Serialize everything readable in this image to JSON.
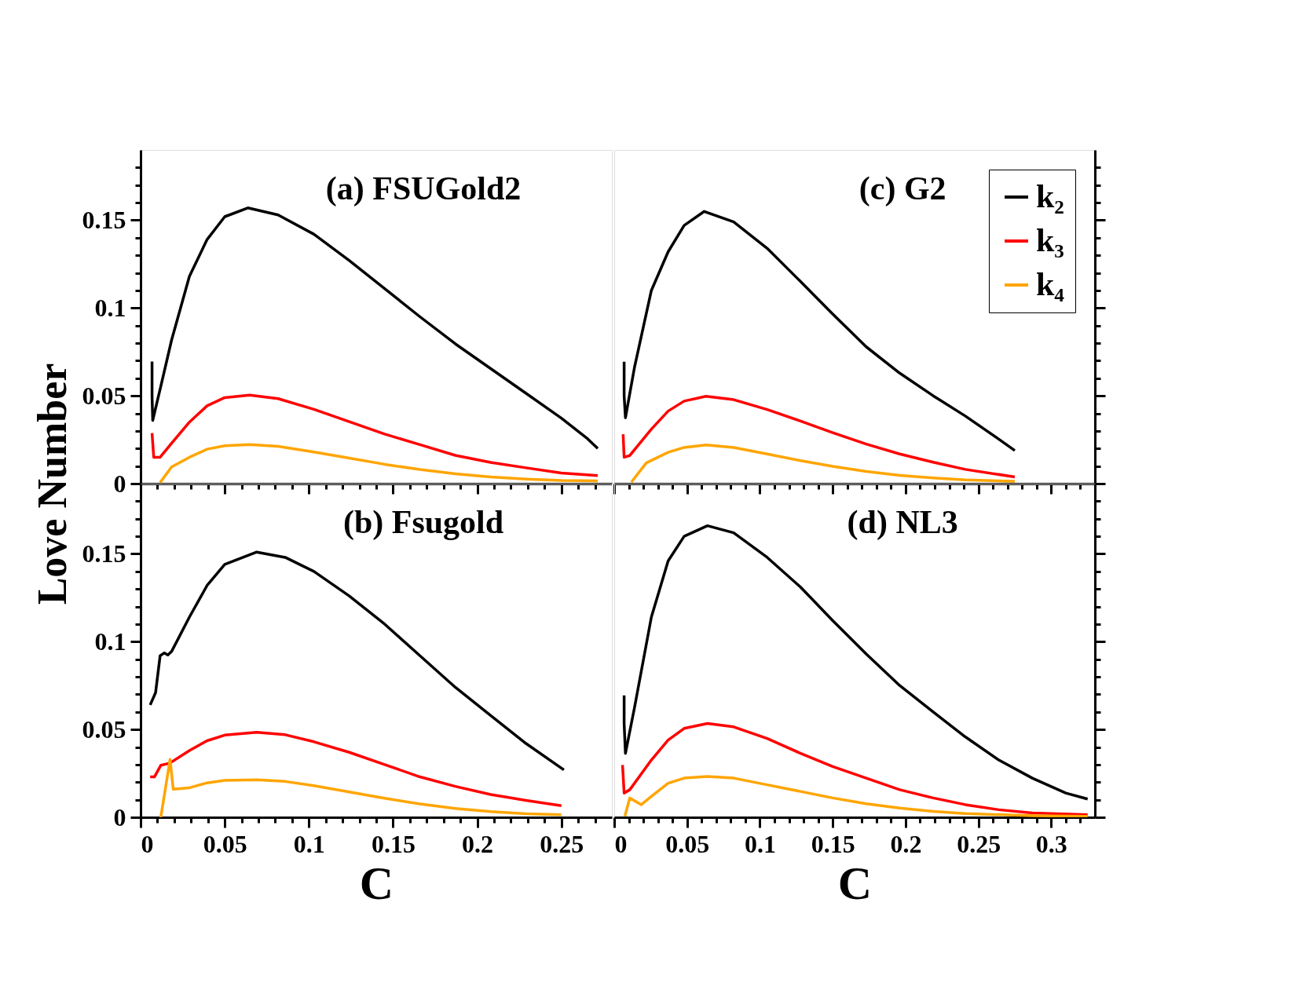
{
  "chart_data": [
    {
      "type": "line",
      "title": "(a) FSUGold2",
      "ylabel": "Love Number",
      "legend": false,
      "tick_labels": "y",
      "xlim": [
        0,
        0.28
      ],
      "ylim": [
        0,
        0.19
      ],
      "xticks": [
        0,
        {
          "value": 0.01,
          "label": null
        },
        {
          "value": 0.02,
          "label": null
        },
        {
          "value": 0.03,
          "label": null
        },
        {
          "value": 0.04,
          "label": null
        },
        0.05,
        {
          "value": 0.06,
          "label": null
        },
        {
          "value": 0.07,
          "label": null
        },
        {
          "value": 0.08,
          "label": null
        },
        {
          "value": 0.09,
          "label": null
        },
        0.1,
        {
          "value": 0.11,
          "label": null
        },
        {
          "value": 0.12,
          "label": null
        },
        {
          "value": 0.13,
          "label": null
        },
        {
          "value": 0.14,
          "label": null
        },
        0.15,
        {
          "value": 0.16,
          "label": null
        },
        {
          "value": 0.17,
          "label": null
        },
        {
          "value": 0.18,
          "label": null
        },
        {
          "value": 0.19,
          "label": null
        },
        0.2,
        {
          "value": 0.21,
          "label": null
        },
        {
          "value": 0.22,
          "label": null
        },
        {
          "value": 0.23,
          "label": null
        },
        {
          "value": 0.24,
          "label": null
        },
        0.25,
        {
          "value": 0.26,
          "label": null
        },
        {
          "value": 0.27,
          "label": null
        }
      ],
      "yticks": [
        0,
        {
          "value": 0.01,
          "label": null
        },
        {
          "value": 0.02,
          "label": null
        },
        {
          "value": 0.03,
          "label": null
        },
        {
          "value": 0.04,
          "label": null
        },
        0.05,
        {
          "value": 0.06,
          "label": null
        },
        {
          "value": 0.07,
          "label": null
        },
        {
          "value": 0.08,
          "label": null
        },
        {
          "value": 0.09,
          "label": null
        },
        0.1,
        {
          "value": 0.11,
          "label": null
        },
        {
          "value": 0.12,
          "label": null
        },
        {
          "value": 0.13,
          "label": null
        },
        {
          "value": 0.14,
          "label": null
        },
        0.15,
        {
          "value": 0.16,
          "label": null
        },
        {
          "value": 0.17,
          "label": null
        },
        {
          "value": 0.18,
          "label": null
        }
      ],
      "series": [
        {
          "color": "#000000",
          "x": [
            0.0068,
            0.0068,
            0.0072,
            0.012,
            0.0184,
            0.029,
            0.0395,
            0.05,
            0.0637,
            0.0817,
            0.103,
            0.124,
            0.145,
            0.166,
            0.187,
            0.208,
            0.229,
            0.25,
            0.265,
            0.2716
          ],
          "values": [
            0.0695,
            0.05,
            0.036,
            0.0554,
            0.0817,
            0.118,
            0.139,
            0.152,
            0.157,
            0.153,
            0.142,
            0.127,
            0.111,
            0.095,
            0.0796,
            0.0655,
            0.0514,
            0.0373,
            0.026,
            0.02
          ]
        },
        {
          "color": "#ff0000",
          "x": [
            0.0068,
            0.0078,
            0.0116,
            0.0184,
            0.029,
            0.0395,
            0.05,
            0.0648,
            0.0817,
            0.103,
            0.124,
            0.145,
            0.166,
            0.187,
            0.208,
            0.229,
            0.25,
            0.2716
          ],
          "values": [
            0.0288,
            0.015,
            0.015,
            0.023,
            0.035,
            0.0443,
            0.049,
            0.0504,
            0.0484,
            0.0423,
            0.0353,
            0.0282,
            0.0222,
            0.0161,
            0.0121,
            0.009,
            0.006,
            0.0046
          ]
        },
        {
          "color": "#ffa500",
          "x": [
            0.0116,
            0.0184,
            0.029,
            0.0395,
            0.05,
            0.0648,
            0.0817,
            0.103,
            0.124,
            0.145,
            0.166,
            0.187,
            0.208,
            0.229,
            0.25,
            0.2716
          ],
          "values": [
            0.0006,
            0.0095,
            0.015,
            0.0196,
            0.0216,
            0.0222,
            0.0212,
            0.018,
            0.0145,
            0.011,
            0.008,
            0.0056,
            0.0038,
            0.0026,
            0.0018,
            0.0016
          ]
        }
      ]
    },
    {
      "type": "line",
      "title": "(c) G2",
      "legend": "top right",
      "tick_labels": false,
      "xlim": [
        0,
        0.33
      ],
      "ylim": [
        0,
        0.19
      ],
      "xticks": [
        0,
        {
          "value": 0.01,
          "label": null
        },
        {
          "value": 0.02,
          "label": null
        },
        {
          "value": 0.03,
          "label": null
        },
        {
          "value": 0.04,
          "label": null
        },
        0.05,
        {
          "value": 0.06,
          "label": null
        },
        {
          "value": 0.07,
          "label": null
        },
        {
          "value": 0.08,
          "label": null
        },
        {
          "value": 0.09,
          "label": null
        },
        0.1,
        {
          "value": 0.11,
          "label": null
        },
        {
          "value": 0.12,
          "label": null
        },
        {
          "value": 0.13,
          "label": null
        },
        {
          "value": 0.14,
          "label": null
        },
        0.15,
        {
          "value": 0.16,
          "label": null
        },
        {
          "value": 0.17,
          "label": null
        },
        {
          "value": 0.18,
          "label": null
        },
        {
          "value": 0.19,
          "label": null
        },
        0.2,
        {
          "value": 0.21,
          "label": null
        },
        {
          "value": 0.22,
          "label": null
        },
        {
          "value": 0.23,
          "label": null
        },
        {
          "value": 0.24,
          "label": null
        },
        0.25,
        {
          "value": 0.26,
          "label": null
        },
        {
          "value": 0.27,
          "label": null
        },
        {
          "value": 0.28,
          "label": null
        },
        {
          "value": 0.29,
          "label": null
        },
        0.3,
        {
          "value": 0.31,
          "label": null
        },
        {
          "value": 0.32,
          "label": null
        }
      ],
      "yticks": [
        0,
        {
          "value": 0.01,
          "label": null
        },
        {
          "value": 0.02,
          "label": null
        },
        {
          "value": 0.03,
          "label": null
        },
        {
          "value": 0.04,
          "label": null
        },
        0.05,
        {
          "value": 0.06,
          "label": null
        },
        {
          "value": 0.07,
          "label": null
        },
        {
          "value": 0.08,
          "label": null
        },
        {
          "value": 0.09,
          "label": null
        },
        0.1,
        {
          "value": 0.11,
          "label": null
        },
        {
          "value": 0.12,
          "label": null
        },
        {
          "value": 0.13,
          "label": null
        },
        {
          "value": 0.14,
          "label": null
        },
        0.15,
        {
          "value": 0.16,
          "label": null
        },
        {
          "value": 0.17,
          "label": null
        },
        {
          "value": 0.18,
          "label": null
        }
      ],
      "series": [
        {
          "name": "k₂",
          "color": "#000000",
          "x": [
            0.0068,
            0.0068,
            0.0077,
            0.014,
            0.0255,
            0.037,
            0.048,
            0.0618,
            0.082,
            0.105,
            0.128,
            0.15,
            0.173,
            0.196,
            0.219,
            0.241,
            0.264,
            0.275
          ],
          "values": [
            0.0694,
            0.05,
            0.0375,
            0.0666,
            0.11,
            0.132,
            0.147,
            0.155,
            0.149,
            0.134,
            0.115,
            0.0966,
            0.0779,
            0.0629,
            0.05,
            0.0385,
            0.0253,
            0.0188
          ]
        },
        {
          "name": "k₃",
          "color": "#ff0000",
          "x": [
            0.0061,
            0.0068,
            0.0107,
            0.0255,
            0.037,
            0.048,
            0.063,
            0.082,
            0.105,
            0.128,
            0.15,
            0.173,
            0.196,
            0.219,
            0.241,
            0.275
          ],
          "values": [
            0.0281,
            0.015,
            0.016,
            0.031,
            0.0413,
            0.047,
            0.0497,
            0.0478,
            0.0422,
            0.0356,
            0.029,
            0.0225,
            0.0169,
            0.0122,
            0.0081,
            0.0038
          ]
        },
        {
          "name": "k₄",
          "color": "#ffa500",
          "x": [
            0.0118,
            0.022,
            0.037,
            0.048,
            0.063,
            0.082,
            0.105,
            0.128,
            0.15,
            0.173,
            0.196,
            0.219,
            0.241,
            0.275
          ],
          "values": [
            0.0009,
            0.0118,
            0.0178,
            0.0206,
            0.022,
            0.0206,
            0.0169,
            0.0131,
            0.0098,
            0.0069,
            0.0047,
            0.0032,
            0.0021,
            0.0013
          ]
        }
      ]
    },
    {
      "type": "line",
      "title": "(b) Fsugold",
      "xlabel": "C",
      "legend": false,
      "xlim": [
        0,
        0.28
      ],
      "ylim": [
        0,
        0.19
      ],
      "xticks": [
        0,
        {
          "value": 0.01,
          "label": null
        },
        {
          "value": 0.02,
          "label": null
        },
        {
          "value": 0.03,
          "label": null
        },
        {
          "value": 0.04,
          "label": null
        },
        0.05,
        {
          "value": 0.06,
          "label": null
        },
        {
          "value": 0.07,
          "label": null
        },
        {
          "value": 0.08,
          "label": null
        },
        {
          "value": 0.09,
          "label": null
        },
        0.1,
        {
          "value": 0.11,
          "label": null
        },
        {
          "value": 0.12,
          "label": null
        },
        {
          "value": 0.13,
          "label": null
        },
        {
          "value": 0.14,
          "label": null
        },
        0.15,
        {
          "value": 0.16,
          "label": null
        },
        {
          "value": 0.17,
          "label": null
        },
        {
          "value": 0.18,
          "label": null
        },
        {
          "value": 0.19,
          "label": null
        },
        0.2,
        {
          "value": 0.21,
          "label": null
        },
        {
          "value": 0.22,
          "label": null
        },
        {
          "value": 0.23,
          "label": null
        },
        {
          "value": 0.24,
          "label": null
        },
        0.25,
        {
          "value": 0.26,
          "label": null
        },
        {
          "value": 0.27,
          "label": null
        }
      ],
      "yticks": [
        0,
        {
          "value": 0.01,
          "label": null
        },
        {
          "value": 0.02,
          "label": null
        },
        {
          "value": 0.03,
          "label": null
        },
        {
          "value": 0.04,
          "label": null
        },
        0.05,
        {
          "value": 0.06,
          "label": null
        },
        {
          "value": 0.07,
          "label": null
        },
        {
          "value": 0.08,
          "label": null
        },
        {
          "value": 0.09,
          "label": null
        },
        0.1,
        {
          "value": 0.11,
          "label": null
        },
        {
          "value": 0.12,
          "label": null
        },
        {
          "value": 0.13,
          "label": null
        },
        {
          "value": 0.14,
          "label": null
        },
        0.15,
        {
          "value": 0.16,
          "label": null
        },
        {
          "value": 0.17,
          "label": null
        },
        {
          "value": 0.18,
          "label": null
        }
      ],
      "series": [
        {
          "color": "#000000",
          "x": [
            0.0057,
            0.0089,
            0.0116,
            0.0141,
            0.0162,
            0.0184,
            0.029,
            0.0395,
            0.05,
            0.069,
            0.0859,
            0.103,
            0.124,
            0.145,
            0.166,
            0.187,
            0.208,
            0.229,
            0.2515
          ],
          "values": [
            0.064,
            0.071,
            0.092,
            0.0936,
            0.0924,
            0.0944,
            0.114,
            0.132,
            0.144,
            0.151,
            0.148,
            0.14,
            0.126,
            0.11,
            0.092,
            0.074,
            0.058,
            0.042,
            0.027
          ]
        },
        {
          "color": "#ff0000",
          "x": [
            0.0057,
            0.0082,
            0.012,
            0.0173,
            0.029,
            0.0395,
            0.05,
            0.069,
            0.0859,
            0.103,
            0.124,
            0.145,
            0.166,
            0.187,
            0.208,
            0.229,
            0.25
          ],
          "values": [
            0.023,
            0.023,
            0.0296,
            0.0308,
            0.038,
            0.0436,
            0.0468,
            0.0484,
            0.047,
            0.043,
            0.037,
            0.03,
            0.023,
            0.0176,
            0.013,
            0.0096,
            0.0066
          ]
        },
        {
          "color": "#ffa500",
          "x": [
            0.012,
            0.0175,
            0.0194,
            0.029,
            0.0395,
            0.05,
            0.069,
            0.0859,
            0.103,
            0.124,
            0.145,
            0.166,
            0.187,
            0.208,
            0.229,
            0.25
          ],
          "values": [
            0.0,
            0.033,
            0.016,
            0.0168,
            0.0196,
            0.021,
            0.0214,
            0.0204,
            0.018,
            0.0144,
            0.0108,
            0.0076,
            0.005,
            0.0032,
            0.002,
            0.0014
          ]
        }
      ]
    },
    {
      "type": "line",
      "title": "(d) NL3",
      "xlabel": "C",
      "legend": false,
      "tick_labels": "x",
      "xlim": [
        0,
        0.33
      ],
      "ylim": [
        0,
        0.19
      ],
      "xticks": [
        0,
        {
          "value": 0.01,
          "label": null
        },
        {
          "value": 0.02,
          "label": null
        },
        {
          "value": 0.03,
          "label": null
        },
        {
          "value": 0.04,
          "label": null
        },
        0.05,
        {
          "value": 0.06,
          "label": null
        },
        {
          "value": 0.07,
          "label": null
        },
        {
          "value": 0.08,
          "label": null
        },
        {
          "value": 0.09,
          "label": null
        },
        0.1,
        {
          "value": 0.11,
          "label": null
        },
        {
          "value": 0.12,
          "label": null
        },
        {
          "value": 0.13,
          "label": null
        },
        {
          "value": 0.14,
          "label": null
        },
        0.15,
        {
          "value": 0.16,
          "label": null
        },
        {
          "value": 0.17,
          "label": null
        },
        {
          "value": 0.18,
          "label": null
        },
        {
          "value": 0.19,
          "label": null
        },
        0.2,
        {
          "value": 0.21,
          "label": null
        },
        {
          "value": 0.22,
          "label": null
        },
        {
          "value": 0.23,
          "label": null
        },
        {
          "value": 0.24,
          "label": null
        },
        0.25,
        {
          "value": 0.26,
          "label": null
        },
        {
          "value": 0.27,
          "label": null
        },
        {
          "value": 0.28,
          "label": null
        },
        {
          "value": 0.29,
          "label": null
        },
        0.3,
        {
          "value": 0.31,
          "label": null
        },
        {
          "value": 0.32,
          "label": null
        }
      ],
      "yticks": [
        0,
        {
          "value": 0.01,
          "label": null
        },
        {
          "value": 0.02,
          "label": null
        },
        {
          "value": 0.03,
          "label": null
        },
        {
          "value": 0.04,
          "label": null
        },
        0.05,
        {
          "value": 0.06,
          "label": null
        },
        {
          "value": 0.07,
          "label": null
        },
        {
          "value": 0.08,
          "label": null
        },
        {
          "value": 0.09,
          "label": null
        },
        0.1,
        {
          "value": 0.11,
          "label": null
        },
        {
          "value": 0.12,
          "label": null
        },
        {
          "value": 0.13,
          "label": null
        },
        {
          "value": 0.14,
          "label": null
        },
        0.15,
        {
          "value": 0.16,
          "label": null
        },
        {
          "value": 0.17,
          "label": null
        },
        {
          "value": 0.18,
          "label": null
        }
      ],
      "series": [
        {
          "color": "#000000",
          "x": [
            0.0068,
            0.0068,
            0.0077,
            0.014,
            0.0255,
            0.037,
            0.048,
            0.064,
            0.082,
            0.105,
            0.128,
            0.15,
            0.173,
            0.196,
            0.219,
            0.241,
            0.264,
            0.287,
            0.31,
            0.325
          ],
          "values": [
            0.0694,
            0.0534,
            0.0364,
            0.0628,
            0.114,
            0.146,
            0.16,
            0.166,
            0.162,
            0.148,
            0.131,
            0.112,
            0.093,
            0.075,
            0.06,
            0.0458,
            0.0326,
            0.0223,
            0.0138,
            0.0104
          ]
        },
        {
          "color": "#ff0000",
          "x": [
            0.0057,
            0.0068,
            0.0107,
            0.0255,
            0.037,
            0.048,
            0.064,
            0.082,
            0.105,
            0.128,
            0.15,
            0.173,
            0.196,
            0.219,
            0.241,
            0.264,
            0.287,
            0.325
          ],
          "values": [
            0.0298,
            0.0138,
            0.0157,
            0.0326,
            0.044,
            0.0506,
            0.0534,
            0.0515,
            0.0449,
            0.0364,
            0.0289,
            0.0223,
            0.0157,
            0.011,
            0.0072,
            0.0043,
            0.0025,
            0.0015
          ]
        },
        {
          "color": "#ffa500",
          "x": [
            0.0073,
            0.0107,
            0.0186,
            0.0255,
            0.037,
            0.048,
            0.064,
            0.082,
            0.105,
            0.128,
            0.15,
            0.173,
            0.196,
            0.219,
            0.241,
            0.287,
            0.325
          ],
          "values": [
            0.0006,
            0.011,
            0.0072,
            0.0119,
            0.0194,
            0.0223,
            0.0232,
            0.0223,
            0.0185,
            0.0147,
            0.011,
            0.0077,
            0.0053,
            0.0034,
            0.0021,
            0.0009,
            0.0006
          ]
        }
      ]
    }
  ]
}
